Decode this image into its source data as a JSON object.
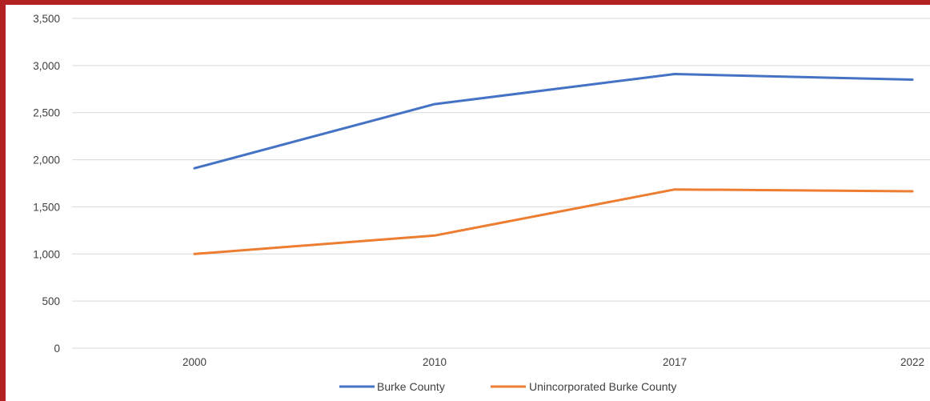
{
  "chart_data": {
    "type": "line",
    "categories": [
      "2000",
      "2010",
      "2017",
      "2022"
    ],
    "series": [
      {
        "name": "Burke County",
        "values": [
          1910,
          2590,
          2910,
          2850
        ],
        "color": "#4472C4"
      },
      {
        "name": "Unincorporated Burke County",
        "values": [
          1000,
          1195,
          1685,
          1665
        ],
        "color": "#ED7D31"
      }
    ],
    "title": "",
    "xlabel": "",
    "ylabel": "",
    "ylim": [
      0,
      3500
    ],
    "yticks": [
      "0",
      "500",
      "1,000",
      "1,500",
      "2,000",
      "2,500",
      "3,000",
      "3,500"
    ],
    "grid": true,
    "legend_position": "bottom"
  },
  "colors": {
    "frame_border": "#B22222",
    "gridline": "#D9D9D9",
    "tick_text": "#404040"
  }
}
